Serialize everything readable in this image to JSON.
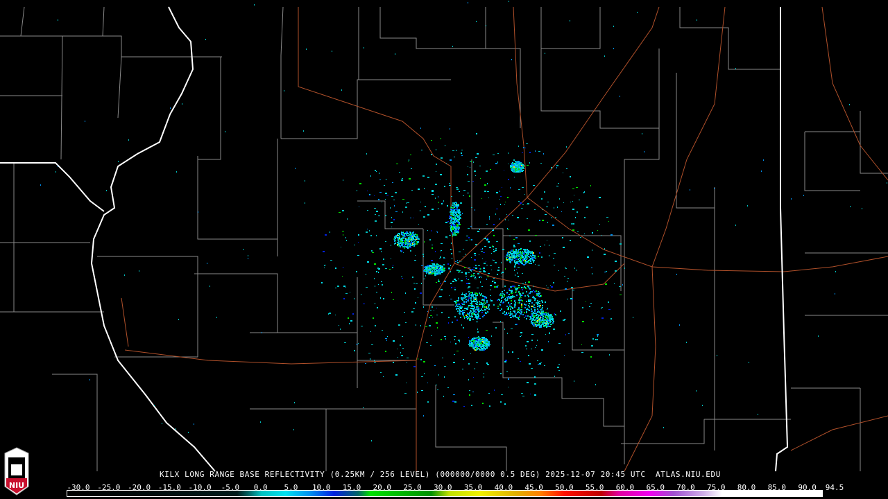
{
  "product": {
    "title": "KILX LONG RANGE BASE REFLECTIVITY (0.25KM / 256 LEVEL) (000000/0000 0.5 DEG) 2025-12-07 20:45 UTC  ATLAS.NIU.EDU"
  },
  "logo": {
    "text": "NIU",
    "icon": "niu-tower-logo",
    "color": "#c8102e"
  },
  "legend": {
    "unit_hint": "dBZ",
    "ticks": [
      "-30.0",
      "-25.0",
      "-20.0",
      "-15.0",
      "-10.0",
      "-5.0",
      "0.0",
      "5.0",
      "10.0",
      "15.0",
      "20.0",
      "25.0",
      "30.0",
      "35.0",
      "40.0",
      "45.0",
      "50.0",
      "55.0",
      "60.0",
      "65.0",
      "70.0",
      "75.0",
      "80.0",
      "85.0",
      "90.0",
      "94.5"
    ],
    "range": [
      -30,
      94.5
    ],
    "colors": [
      {
        "v": -30,
        "c": "#000000"
      },
      {
        "v": -2,
        "c": "#001a1a"
      },
      {
        "v": 0,
        "c": "#006666"
      },
      {
        "v": 2,
        "c": "#00c0c0"
      },
      {
        "v": 6,
        "c": "#00e0f0"
      },
      {
        "v": 10,
        "c": "#0090f0"
      },
      {
        "v": 14,
        "c": "#0020e0"
      },
      {
        "v": 18,
        "c": "#006666"
      },
      {
        "v": 20,
        "c": "#00e000"
      },
      {
        "v": 30,
        "c": "#009000"
      },
      {
        "v": 33,
        "c": "#c0e000"
      },
      {
        "v": 38,
        "c": "#f0f000"
      },
      {
        "v": 44,
        "c": "#e0b000"
      },
      {
        "v": 48,
        "c": "#ff8000"
      },
      {
        "v": 52,
        "c": "#ff1000"
      },
      {
        "v": 58,
        "c": "#c00000"
      },
      {
        "v": 61,
        "c": "#e000a0"
      },
      {
        "v": 66,
        "c": "#f000f0"
      },
      {
        "v": 70,
        "c": "#a050d0"
      },
      {
        "v": 75,
        "c": "#d0b0e8"
      },
      {
        "v": 78,
        "c": "#ffffff"
      },
      {
        "v": 94.5,
        "c": "#ffffff"
      }
    ]
  },
  "map": {
    "county_line_color": "#8a8a8a",
    "state_line_color": "#ffffff",
    "road_color": "#b0502a",
    "radar_site": "KILX"
  }
}
